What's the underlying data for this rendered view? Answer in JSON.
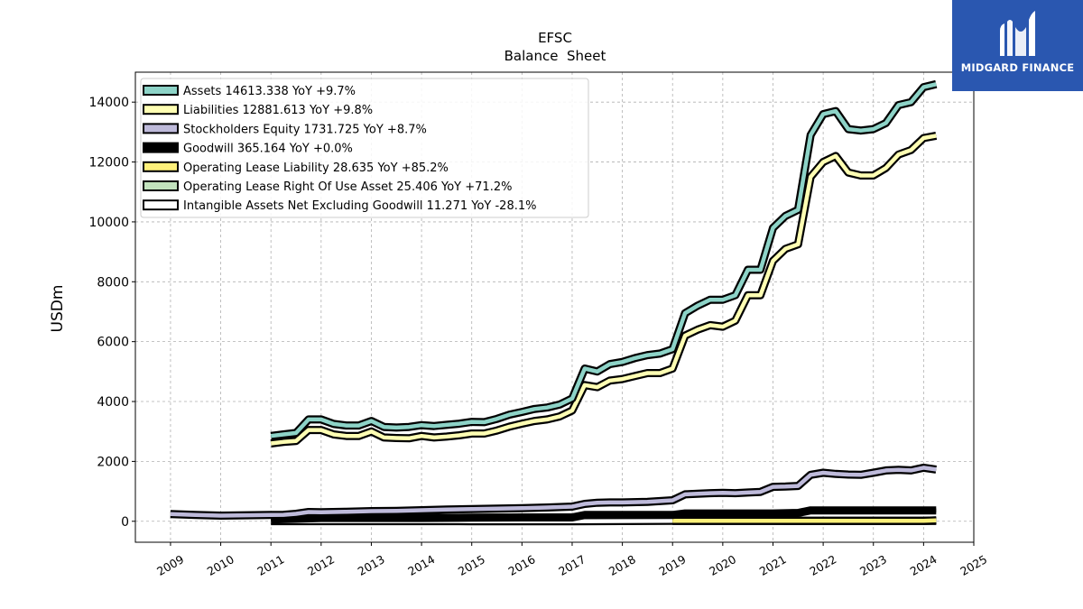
{
  "chart_data": {
    "type": "line",
    "title": "EFSC",
    "subtitle": "Balance  Sheet",
    "ylabel": "USDm",
    "xlabel": "",
    "xlim": [
      2008.3,
      2025.0
    ],
    "ylim": [
      -700,
      15000
    ],
    "yticks": [
      0,
      2000,
      4000,
      6000,
      8000,
      10000,
      12000,
      14000
    ],
    "xticks": [
      "2009",
      "2010",
      "2011",
      "2012",
      "2013",
      "2014",
      "2015",
      "2016",
      "2017",
      "2018",
      "2019",
      "2020",
      "2021",
      "2022",
      "2023",
      "2024",
      "2025"
    ],
    "grid": true,
    "legend_position": "top-left",
    "series": [
      {
        "name": "Assets  14613.338 YoY +9.7%",
        "color": "#8dd3c7",
        "x": [
          2011.0,
          2011.25,
          2011.5,
          2011.75,
          2012.0,
          2012.25,
          2012.5,
          2012.75,
          2013.0,
          2013.25,
          2013.5,
          2013.75,
          2014.0,
          2014.25,
          2014.5,
          2014.75,
          2015.0,
          2015.25,
          2015.5,
          2015.75,
          2016.0,
          2016.25,
          2016.5,
          2016.75,
          2017.0,
          2017.25,
          2017.5,
          2017.75,
          2018.0,
          2018.25,
          2018.5,
          2018.75,
          2019.0,
          2019.25,
          2019.5,
          2019.75,
          2020.0,
          2020.25,
          2020.5,
          2020.75,
          2021.0,
          2021.25,
          2021.5,
          2021.75,
          2022.0,
          2022.25,
          2022.5,
          2022.75,
          2023.0,
          2023.25,
          2023.5,
          2023.75,
          2024.0,
          2024.25
        ],
        "values": [
          2850,
          2900,
          2950,
          3400,
          3400,
          3250,
          3200,
          3200,
          3350,
          3150,
          3130,
          3150,
          3210,
          3180,
          3220,
          3260,
          3320,
          3310,
          3420,
          3560,
          3650,
          3750,
          3800,
          3900,
          4100,
          5100,
          5000,
          5250,
          5320,
          5450,
          5550,
          5600,
          5750,
          6950,
          7200,
          7400,
          7400,
          7550,
          8400,
          8400,
          9800,
          10200,
          10400,
          12900,
          13600,
          13700,
          13100,
          13050,
          13100,
          13300,
          13900,
          14000,
          14500,
          14600
        ]
      },
      {
        "name": "Liabilities  12881.613 YoY +9.8%",
        "color": "#ffffb3",
        "x": [
          2011.0,
          2011.25,
          2011.5,
          2011.75,
          2012.0,
          2012.25,
          2012.5,
          2012.75,
          2013.0,
          2013.25,
          2013.5,
          2013.75,
          2014.0,
          2014.25,
          2014.5,
          2014.75,
          2015.0,
          2015.25,
          2015.5,
          2015.75,
          2016.0,
          2016.25,
          2016.5,
          2016.75,
          2017.0,
          2017.25,
          2017.5,
          2017.75,
          2018.0,
          2018.25,
          2018.5,
          2018.75,
          2019.0,
          2019.25,
          2019.5,
          2019.75,
          2020.0,
          2020.25,
          2020.5,
          2020.75,
          2021.0,
          2021.25,
          2021.5,
          2021.75,
          2022.0,
          2022.25,
          2022.5,
          2022.75,
          2023.0,
          2023.25,
          2023.5,
          2023.75,
          2024.0,
          2024.25
        ],
        "values": [
          2600,
          2650,
          2680,
          3050,
          3050,
          2900,
          2850,
          2850,
          3000,
          2800,
          2780,
          2770,
          2850,
          2800,
          2830,
          2870,
          2930,
          2930,
          3030,
          3160,
          3260,
          3350,
          3400,
          3500,
          3700,
          4550,
          4480,
          4700,
          4750,
          4850,
          4950,
          4950,
          5100,
          6200,
          6400,
          6550,
          6500,
          6700,
          7550,
          7550,
          8700,
          9100,
          9250,
          11500,
          12000,
          12200,
          11650,
          11550,
          11550,
          11800,
          12250,
          12400,
          12800,
          12880
        ]
      },
      {
        "name": "Stockholders Equity  1731.725 YoY +8.7%",
        "color": "#bebada",
        "x": [
          2009.0,
          2009.5,
          2010.0,
          2010.5,
          2011.0,
          2011.25,
          2011.5,
          2011.75,
          2012.0,
          2012.5,
          2013.0,
          2013.5,
          2014.0,
          2014.5,
          2015.0,
          2015.5,
          2016.0,
          2016.5,
          2017.0,
          2017.25,
          2017.5,
          2017.75,
          2018.0,
          2018.5,
          2019.0,
          2019.25,
          2019.5,
          2019.75,
          2020.0,
          2020.25,
          2020.5,
          2020.75,
          2021.0,
          2021.25,
          2021.5,
          2021.75,
          2022.0,
          2022.25,
          2022.5,
          2022.75,
          2023.0,
          2023.25,
          2023.5,
          2023.75,
          2024.0,
          2024.25
        ],
        "values": [
          240,
          210,
          190,
          200,
          210,
          215,
          250,
          310,
          300,
          320,
          340,
          350,
          370,
          390,
          410,
          420,
          440,
          460,
          490,
          580,
          620,
          630,
          630,
          650,
          700,
          900,
          920,
          940,
          950,
          940,
          960,
          980,
          1150,
          1160,
          1180,
          1550,
          1620,
          1580,
          1560,
          1550,
          1620,
          1700,
          1720,
          1700,
          1790,
          1730
        ]
      },
      {
        "name": "Goodwill  365.164 YoY +0.0%",
        "color": "#000000",
        "x": [
          2011.0,
          2012.0,
          2013.0,
          2014.0,
          2015.0,
          2016.0,
          2017.0,
          2017.25,
          2018.0,
          2019.0,
          2019.25,
          2020.0,
          2021.0,
          2021.5,
          2021.75,
          2022.0,
          2023.0,
          2024.0,
          2024.25
        ],
        "values": [
          60,
          110,
          110,
          110,
          120,
          130,
          130,
          210,
          210,
          210,
          260,
          260,
          260,
          280,
          365,
          365,
          365,
          365,
          365
        ]
      },
      {
        "name": "Operating Lease Liability  28.635 YoY +85.2%",
        "color": "#fdf07a",
        "x": [
          2019.0,
          2019.5,
          2020.0,
          2021.0,
          2022.0,
          2023.0,
          2024.0,
          2024.25
        ],
        "values": [
          15,
          18,
          17,
          16,
          15,
          15,
          16,
          28.6
        ]
      },
      {
        "name": "Operating Lease Right Of Use Asset  25.406 YoY +71.2%",
        "color": "#c2e2bd",
        "x": [
          2019.0,
          2019.5,
          2020.0,
          2021.0,
          2022.0,
          2023.0,
          2024.0,
          2024.25
        ],
        "values": [
          14,
          16,
          15,
          14,
          14,
          14,
          15,
          25.4
        ]
      },
      {
        "name": "Intangible Assets Net Excluding Goodwill  11.271 YoY -28.1%",
        "color": "#ffffff",
        "x": [
          2011.0,
          2012.0,
          2013.0,
          2014.0,
          2015.0,
          2016.0,
          2017.0,
          2018.0,
          2019.0,
          2020.0,
          2021.0,
          2022.0,
          2023.0,
          2024.0,
          2024.25
        ],
        "values": [
          5,
          4,
          4,
          4,
          3,
          3,
          3,
          8,
          18,
          16,
          14,
          12,
          11,
          11,
          11.3
        ]
      }
    ]
  },
  "logo": {
    "text": "MIDGARD FINANCE",
    "background": "#2a57b0",
    "icon": "midgard-logo-icon"
  }
}
